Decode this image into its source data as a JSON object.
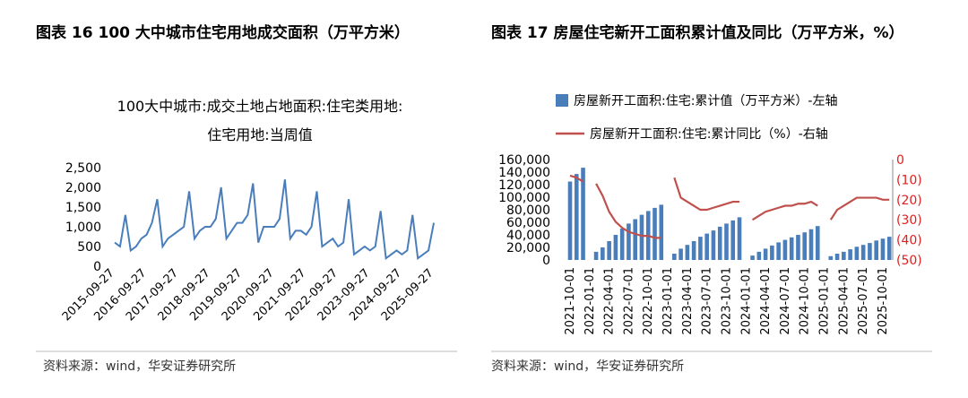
{
  "left_heading": "图表 16 100 大中城市住宅用地成交面积（万平方米）",
  "right_heading": "图表  17  房屋住宅新开工面积累计值及同比（万平方米，%）",
  "source_left": "资料来源：wind，华安证券研究所",
  "source_right": "资料来源：wind，华安证券研究所",
  "chart_data": [
    {
      "type": "line",
      "title": [
        "100大中城市:成交土地占地面积:住宅类用地:",
        "住宅用地:当周值"
      ],
      "categories": [
        "2015-09-27",
        null,
        null,
        null,
        null,
        null,
        "2016-09-27",
        null,
        null,
        null,
        null,
        null,
        "2017-09-27",
        null,
        null,
        null,
        null,
        null,
        "2018-09-27",
        null,
        null,
        null,
        null,
        null,
        "2019-09-27",
        null,
        null,
        null,
        null,
        null,
        "2020-09-27",
        null,
        null,
        null,
        null,
        null,
        "2021-09-27",
        null,
        null,
        null,
        null,
        null,
        "2022-09-27",
        null,
        null,
        null,
        null,
        null,
        "2023-09-27",
        null,
        null,
        null,
        null,
        null,
        "2024-09-27",
        null,
        null,
        null,
        null,
        null,
        "2025-09-27"
      ],
      "series": [
        {
          "name": "100大中城市:成交土地占地面积:住宅类用地:住宅用地:当周值",
          "color": "#4a7ebb",
          "values": [
            600,
            500,
            1300,
            400,
            500,
            700,
            800,
            1100,
            1700,
            500,
            700,
            800,
            900,
            1000,
            1900,
            700,
            900,
            1000,
            1000,
            1200,
            2000,
            700,
            900,
            1100,
            1100,
            1300,
            2100,
            600,
            1000,
            1000,
            1000,
            1200,
            2200,
            700,
            900,
            900,
            800,
            1000,
            1900,
            500,
            600,
            700,
            500,
            600,
            1700,
            300,
            400,
            500,
            400,
            500,
            1400,
            200,
            300,
            400,
            300,
            400,
            1300,
            200,
            300,
            400,
            1100
          ]
        }
      ],
      "ylim": [
        0,
        2500
      ],
      "yticks": [
        0,
        {
          "value": 500,
          "label": "500"
        },
        {
          "value": 1000,
          "label": "1,000"
        },
        {
          "value": 1500,
          "label": "1,500"
        },
        {
          "value": 2000,
          "label": "2,000"
        },
        {
          "value": 2500,
          "label": "2,500"
        }
      ]
    },
    {
      "type": "bar_line",
      "categories": [
        "2021-10-01",
        null,
        null,
        "2022-01-01",
        null,
        null,
        "2022-04-01",
        null,
        null,
        "2022-07-01",
        null,
        null,
        "2022-10-01",
        null,
        null,
        "2023-01-01",
        null,
        null,
        "2023-04-01",
        null,
        null,
        "2023-07-01",
        null,
        null,
        "2023-10-01",
        null,
        null,
        "2024-01-01",
        null,
        null,
        "2024-04-01",
        null,
        null,
        "2024-07-01",
        null,
        null,
        "2024-10-01",
        null,
        null,
        "2025-01-01",
        null,
        null,
        "2025-04-01",
        null,
        null,
        "2025-07-01",
        null,
        null,
        "2025-10-01",
        null
      ],
      "series": [
        {
          "name": "房屋新开工面积:住宅:累计值（万平方米）-左轴",
          "color": "#4a7ebb",
          "values": [
            125000,
            137000,
            147000,
            null,
            13000,
            20000,
            30000,
            40000,
            50000,
            58000,
            65000,
            72000,
            78000,
            83000,
            88000,
            null,
            10000,
            18000,
            24000,
            30000,
            37000,
            42000,
            47000,
            53000,
            58000,
            63000,
            68000,
            null,
            7000,
            13000,
            18000,
            23000,
            28000,
            32000,
            36000,
            40000,
            44000,
            49000,
            54000,
            null,
            6000,
            10000,
            13000,
            17000,
            21000,
            24000,
            27000,
            31000,
            34000,
            37000
          ]
        },
        {
          "name": "房屋新开工面积:住宅:累计同比（%）-右轴",
          "color": "#c0504d",
          "axis": "y2",
          "values": [
            -8,
            -9,
            -11,
            null,
            -12,
            -18,
            -26,
            -31,
            -34,
            -36,
            -37,
            -38,
            -38,
            -39,
            -39,
            null,
            -9,
            -19,
            -21,
            -23,
            -25,
            -25,
            -24,
            -23,
            -22,
            -21,
            -21,
            null,
            -30,
            -28,
            -26,
            -25,
            -24,
            -23,
            -23,
            -22,
            -22,
            -21,
            -23,
            null,
            -30,
            -25,
            -23,
            -21,
            -19,
            -19,
            -19,
            -19,
            -20,
            -20
          ]
        }
      ],
      "ylim": [
        0,
        160000
      ],
      "yticks": [
        0,
        {
          "value": 20000,
          "label": "20,000"
        },
        {
          "value": 40000,
          "label": "40,000"
        },
        {
          "value": 60000,
          "label": "60,000"
        },
        {
          "value": 80000,
          "label": "80,000"
        },
        {
          "value": 100000,
          "label": "100,000"
        },
        {
          "value": 120000,
          "label": "120,000"
        },
        {
          "value": 140000,
          "label": "140,000"
        },
        {
          "value": 160000,
          "label": "160,000"
        }
      ],
      "y2lim": [
        -50,
        0
      ],
      "y2ticks": [
        0,
        {
          "value": -10,
          "label": "(10)"
        },
        {
          "value": -20,
          "label": "(20)"
        },
        {
          "value": -30,
          "label": "(30)"
        },
        {
          "value": -40,
          "label": "(40)"
        },
        {
          "value": -50,
          "label": "(50)"
        }
      ],
      "y2_color": "#e02020"
    }
  ]
}
